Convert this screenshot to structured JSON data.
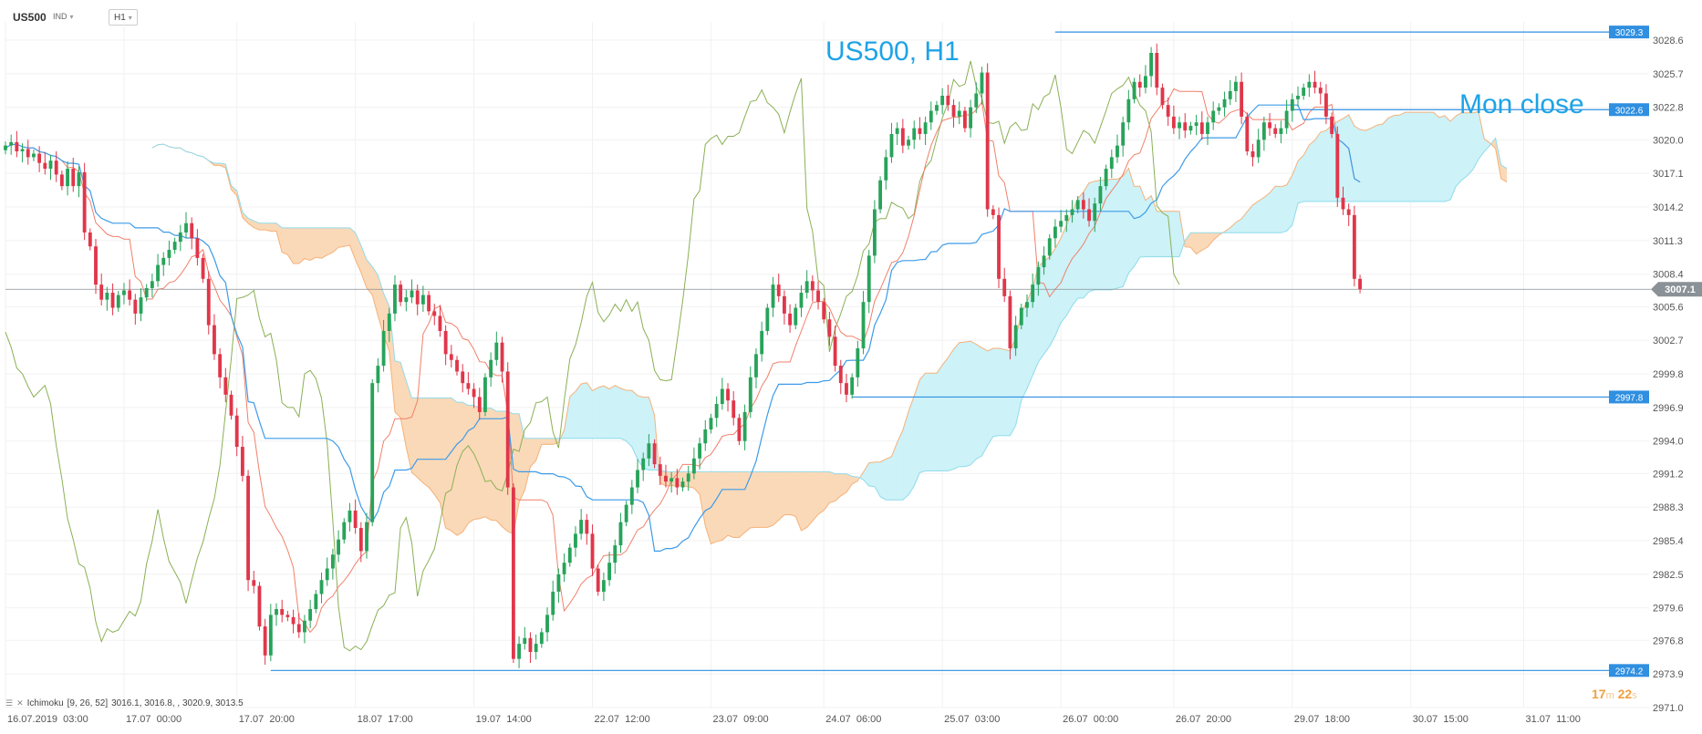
{
  "toolbar": {
    "symbol": "US500",
    "type": "IND",
    "timeframe": "H1"
  },
  "indicator": {
    "name": "Ichimoku",
    "params": "[9, 26, 52]",
    "values": "3016.1,  3016.8,  ,  3020.9,  3013.5"
  },
  "timer": {
    "min": "17",
    "min_unit": "m",
    "sec": "22",
    "sec_unit": "s"
  },
  "colors": {
    "up": "#27a35a",
    "down": "#e0364a",
    "tenkan": "#f0806a",
    "kijun": "#3d9be9",
    "chikou": "#8ab055",
    "kumo_bull": "#cdf2f8",
    "kumo_bear": "#fad9b8",
    "span_a": "#f5b27a",
    "span_b": "#8fdcec",
    "level": "#2f8fe0",
    "price": "#8a8f95"
  },
  "chart_data": {
    "type": "candlestick",
    "title": "US500, H1",
    "annotations": [
      {
        "text": "Mon close",
        "price": 3022.6
      }
    ],
    "y_ticks": [
      3028.6,
      3025.7,
      3022.8,
      3020.0,
      3017.1,
      3014.2,
      3011.3,
      3008.4,
      3005.6,
      3002.7,
      2999.8,
      2996.9,
      2994.0,
      2991.2,
      2988.3,
      2985.4,
      2982.5,
      2979.6,
      2976.8,
      2973.9,
      2971.0
    ],
    "y_tick_labels": [
      "3028.6",
      "3025.7",
      "3022.8",
      "3020.0",
      "3017.1",
      "3014.2",
      "3011.3",
      "3008.4",
      "3005.6",
      "3002.7",
      "2999.8",
      "2996.9",
      "2994.0",
      "2991.2",
      "2988.3",
      "2985.4",
      "2982.5",
      "2979.6",
      "2976.8",
      "2973.9",
      "2971.0"
    ],
    "ylim": [
      2971.0,
      3028.6
    ],
    "x_labels": [
      "16.07.2019  03:00",
      "17.07  00:00",
      "17.07  20:00",
      "18.07  17:00",
      "19.07  14:00",
      "22.07  12:00",
      "23.07  09:00",
      "24.07  06:00",
      "25.07  03:00",
      "26.07  00:00",
      "26.07  20:00",
      "29.07  18:00",
      "30.07  15:00",
      "31.07  11:00"
    ],
    "x_label_bars": [
      0,
      21,
      41,
      62,
      83,
      104,
      125,
      145,
      166,
      187,
      207,
      228,
      249,
      269
    ],
    "levels": [
      {
        "price": 3029.3,
        "label": "3029.3",
        "from_bar": 186
      },
      {
        "price": 3022.6,
        "label": "3022.6",
        "from_bar": 228
      },
      {
        "price": 2997.8,
        "label": "2997.8",
        "from_bar": 150
      },
      {
        "price": 2974.2,
        "label": "2974.2",
        "from_bar": 47
      }
    ],
    "current_price": {
      "price": 3007.1,
      "label": "3007.1"
    },
    "close": [
      3019.5,
      3019.8,
      3019.0,
      3019.2,
      3018.5,
      3018.8,
      3018.0,
      3017.5,
      3018.2,
      3017.0,
      3016.0,
      3017.5,
      3016.0,
      3017.2,
      3012.0,
      3010.8,
      3007.5,
      3006.2,
      3006.8,
      3005.5,
      3006.6,
      3007.0,
      3006.2,
      3005.0,
      3006.4,
      3007.2,
      3007.8,
      3009.2,
      3009.8,
      3010.5,
      3011.2,
      3012.0,
      3012.8,
      3011.5,
      3009.8,
      3008.0,
      3004.0,
      3001.5,
      2999.5,
      2998.0,
      2996.2,
      2993.5,
      2991.0,
      2982.0,
      2981.5,
      2978.0,
      2975.5,
      2979.0,
      2979.5,
      2979.0,
      2978.8,
      2978.2,
      2977.5,
      2978.5,
      2979.5,
      2980.8,
      2982.0,
      2983.0,
      2984.2,
      2985.5,
      2987.0,
      2988.0,
      2986.5,
      2984.5,
      2987.0,
      2999.0,
      3000.5,
      3003.5,
      3005.0,
      3007.5,
      3006.0,
      3006.4,
      3007.0,
      3005.8,
      3006.6,
      3005.2,
      3004.8,
      3003.5,
      3001.5,
      3001.0,
      3000.0,
      2999.0,
      2998.5,
      2997.8,
      2996.5,
      2999.5,
      3001.0,
      3002.5,
      3000.0,
      2990.0,
      2975.2,
      2976.5,
      2977.0,
      2975.8,
      2976.5,
      2977.5,
      2979.0,
      2981.0,
      2982.5,
      2983.5,
      2984.8,
      2986.0,
      2987.2,
      2986.0,
      2983.0,
      2981.0,
      2982.0,
      2983.5,
      2985.0,
      2987.0,
      2988.5,
      2990.0,
      2991.5,
      2992.5,
      2993.8,
      2992.0,
      2991.0,
      2990.5,
      2990.8,
      2990.0,
      2990.5,
      2991.2,
      2992.5,
      2993.8,
      2995.0,
      2996.0,
      2997.2,
      2998.5,
      2997.5,
      2996.0,
      2994.0,
      2996.5,
      2999.5,
      3001.5,
      3003.5,
      3005.5,
      3007.5,
      3006.5,
      3005.0,
      3004.0,
      3005.5,
      3006.8,
      3007.8,
      3007.0,
      3006.0,
      3004.5,
      3003.0,
      3000.5,
      2999.0,
      2998.0,
      2999.5,
      3002.0,
      3006.0,
      3010.0,
      3014.0,
      3016.5,
      3018.5,
      3020.5,
      3021.0,
      3019.5,
      3020.0,
      3021.0,
      3020.5,
      3021.5,
      3022.5,
      3023.0,
      3023.8,
      3023.0,
      3022.0,
      3022.5,
      3021.0,
      3022.8,
      3024.0,
      3025.8,
      3014.0,
      3013.5,
      3008.0,
      3006.5,
      3002.0,
      3004.0,
      3005.5,
      3006.0,
      3007.5,
      3009.0,
      3010.0,
      3011.5,
      3012.5,
      3013.0,
      3013.5,
      3014.0,
      3014.8,
      3014.0,
      3013.0,
      3014.5,
      3016.0,
      3017.5,
      3018.5,
      3019.5,
      3021.5,
      3023.5,
      3025.0,
      3024.5,
      3025.5,
      3027.5,
      3024.5,
      3023.0,
      3022.0,
      3021.0,
      3021.5,
      3020.8,
      3021.2,
      3021.5,
      3020.5,
      3021.5,
      3022.5,
      3022.8,
      3023.5,
      3024.2,
      3025.0,
      3022.0,
      3019.0,
      3018.5,
      3020.0,
      3021.5,
      3021.0,
      3020.5,
      3021.0,
      3022.5,
      3023.5,
      3023.8,
      3024.5,
      3025.0,
      3024.5,
      3024.0,
      3022.0,
      3020.5,
      3015.0,
      3014.0,
      3013.5,
      3008.0,
      3007.1
    ],
    "chikou": [
      3003.4,
      3002.1,
      3000.3,
      2999.8,
      2998.7,
      2997.8,
      2998.3,
      2998.8,
      2997.2,
      2993.6,
      2990.7,
      2987.3,
      2985.5,
      2983.4,
      2983.1,
      2981.3,
      2978.4,
      2976.7,
      2977.8,
      2977.5,
      2977.7,
      2978.5,
      2979.3,
      2978.9,
      2980.2,
      2983.4,
      2985.4,
      2988.1,
      2985.6,
      2983.6,
      2982.7,
      2981.8,
      2980.0,
      2982.0,
      2983.9,
      2985.3,
      2987.3,
      2989.0,
      2991.9,
      2996.5,
      3001.1,
      3006.3,
      3006.4,
      3006.6,
      3007.0,
      3004.6,
      3003.0,
      3003.3,
      3001.0,
      2997.3,
      2996.9,
      2996.9,
      2996.1,
      2999.8,
      3000.1,
      2999.4,
      2997.7,
      2993.8,
      2987.1,
      2979.7,
      2976.2,
      2975.9,
      2976.3,
      2976.0,
      2976.7,
      2978.1,
      2979.4,
      2979.8,
      2980.7,
      2980.9,
      2986.5,
      2987.4,
      2985.2,
      2980.6,
      2982.8,
      2983.7,
      2984.7,
      2987.0,
      2989.5,
      2989.8,
      2991.9,
      2993.1,
      2993.6,
      2992.9,
      2991.8,
      2990.5,
      2990.6,
      2989.9,
      2989.7,
      2991.2,
      2993.3,
      2993.1,
      2995.0,
      2995.6,
      2997.3,
      2997.4,
      2997.8,
      2994.8,
      2993.4,
      2997.5,
      3001.1,
      3002.3,
      3004.2,
      3006.5,
      3007.7,
      3005.1,
      3004.3,
      3004.9,
      3005.8,
      3005.2,
      3006.2,
      3005.2,
      3006.0,
      3003.7,
      3002.7,
      3000.1,
      2999.3,
      2999.2,
      2999.3,
      3002.6,
      3006.1,
      3010.1,
      3014.9,
      3015.6,
      3019.6,
      3020.1,
      3020.4,
      3019.6,
      3020.3,
      3020.3,
      3020.6,
      3022.0,
      3023.3,
      3023.4,
      3024.3,
      3023.2,
      3022.8,
      3022.2,
      3020.6,
      3022.4,
      3024.0,
      3025.3,
      3014.1,
      3012.1,
      3007.9,
      3007.4,
      3001.7,
      3003.7,
      3005.0,
      3006.5,
      3006.9,
      3008.3,
      3010.4,
      3011.0,
      3012.9,
      3013.2,
      3013.2,
      3014.6,
      3014.3,
      3014.1,
      3013.2,
      3013.6,
      3016.4,
      3017.6,
      3018.2,
      3020.1,
      3021.9,
      3023.2,
      3025.2,
      3024.6,
      3024.8,
      3026.8,
      3024.6,
      3023.6,
      3021.5,
      3021.4,
      3021.6,
      3019.7,
      3021.1,
      3021.5,
      3020.8,
      3020.9,
      3023.1,
      3022.6,
      3023.7,
      3024.0,
      3025.6,
      3022.8,
      3019.2,
      3018.8,
      3019.8,
      3020.8,
      3020.5,
      3019.7,
      3021.1,
      3022.5,
      3024.0,
      3024.4,
      3024.7,
      3025.4,
      3024.1,
      3023.0,
      3022.5,
      3020.7,
      3014.3,
      3013.7,
      3013.4,
      3008.4,
      3007.5,
      null,
      null,
      null,
      null,
      null,
      null,
      null,
      null,
      null,
      null,
      null,
      null,
      null,
      null,
      null,
      null,
      null,
      null,
      null,
      null,
      null,
      null,
      null,
      null,
      null,
      null,
      null,
      null,
      null,
      null,
      null,
      null,
      null,
      null,
      null,
      null,
      null,
      null,
      null,
      null,
      null,
      null,
      null,
      null,
      null,
      null,
      null,
      null,
      null,
      null,
      null,
      null
    ]
  }
}
